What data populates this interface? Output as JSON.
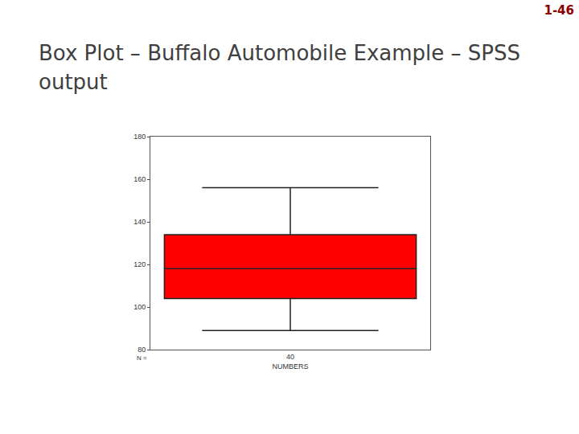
{
  "chart_data": {
    "type": "box",
    "title": "Box Plot – Buffalo Automobile Example – SPSS output",
    "page_number": "1-46",
    "x_label": "NUMBERS",
    "n_label": "N =",
    "categories": [
      "40"
    ],
    "q1": [
      104
    ],
    "median": [
      118
    ],
    "q3": [
      134
    ],
    "lower_whisker": [
      89
    ],
    "upper_whisker": [
      156
    ],
    "color": "#ff0000",
    "ylim": [
      80,
      180
    ],
    "yticks": [
      80,
      100,
      120,
      140,
      160,
      180
    ],
    "grid": false
  }
}
